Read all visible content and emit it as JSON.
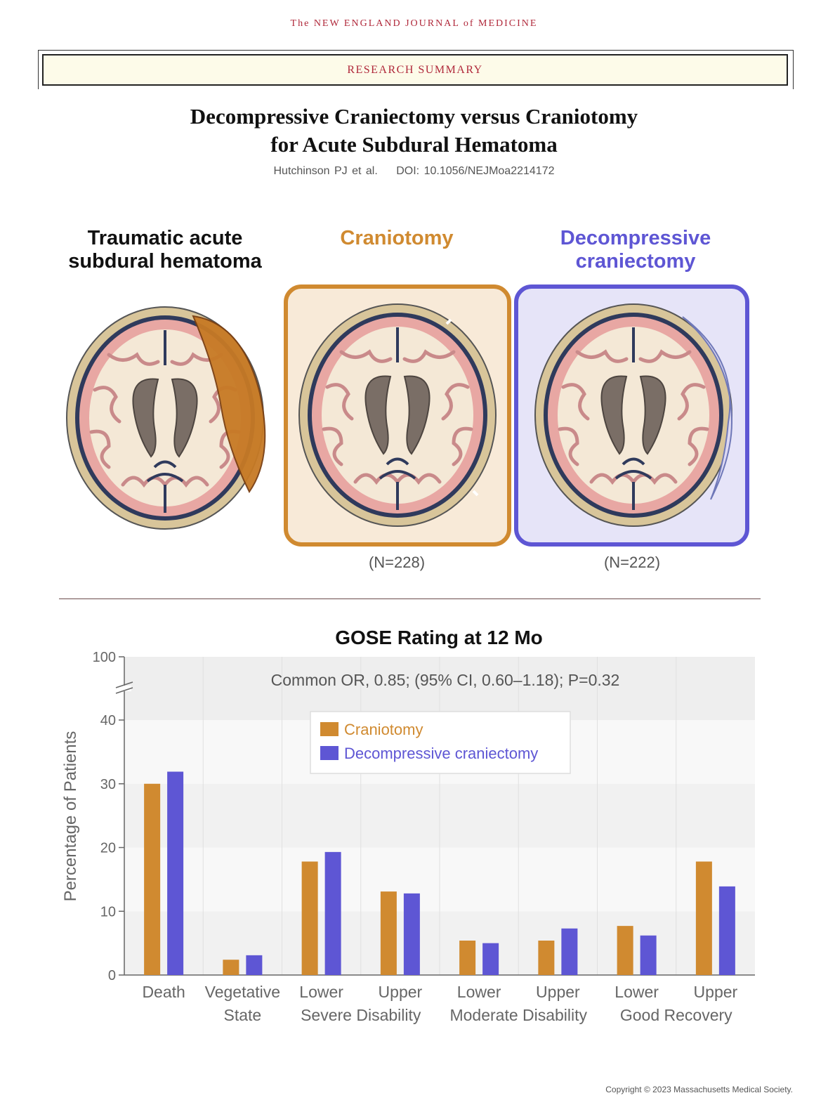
{
  "header": {
    "journal_name": "The NEW ENGLAND JOURNAL of MEDICINE",
    "banner": "RESEARCH SUMMARY",
    "title_line1": "Decompressive Craniectomy versus Craniotomy",
    "title_line2": "for Acute Subdural Hematoma",
    "authors": "Hutchinson PJ et al.",
    "doi": "DOI: 10.1056/NEJMoa2214172"
  },
  "panels": {
    "condition": {
      "line1": "Traumatic acute",
      "line2": "subdural hematoma"
    },
    "craniotomy": {
      "line1": "Craniotomy",
      "n": "(N=228)"
    },
    "craniectomy": {
      "line1": "Decompressive",
      "line2": "craniectomy",
      "n": "(N=222)"
    }
  },
  "colors": {
    "craniotomy": "#d08a30",
    "craniectomy": "#5e56d4",
    "journal_red": "#b0283a"
  },
  "chart_data": {
    "type": "bar",
    "title": "GOSE Rating at 12 Mo",
    "ylabel": "Percentage of Patients",
    "xlabel": "",
    "ylim": [
      0,
      100
    ],
    "y_axis_break": [
      40,
      100
    ],
    "yticks": [
      "0",
      "10",
      "20",
      "30",
      "40",
      "100"
    ],
    "annotation": "Common OR, 0.85; (95% CI, 0.60–1.18); P=0.32",
    "legend_position": "top-center",
    "grid": "alternating horizontal bands",
    "categories": [
      "Death",
      "Vegetative State",
      "Lower Severe Disability",
      "Upper Severe Disability",
      "Lower Moderate Disability",
      "Upper Moderate Disability",
      "Lower Good Recovery",
      "Upper Good Recovery"
    ],
    "tick_labels": {
      "death": "Death",
      "vegetative_1": "Vegetative",
      "vegetative_2": "State",
      "lower": "Lower",
      "upper": "Upper",
      "severe": "Severe Disability",
      "moderate": "Moderate Disability",
      "good": "Good Recovery"
    },
    "series": [
      {
        "name": "Craniotomy",
        "values": [
          30.0,
          2.4,
          17.8,
          13.1,
          5.4,
          5.4,
          7.7,
          17.8
        ]
      },
      {
        "name": "Decompressive craniectomy",
        "values": [
          31.9,
          3.1,
          19.3,
          12.8,
          5.0,
          7.3,
          6.2,
          13.9
        ]
      }
    ]
  },
  "footer": {
    "copyright": "Copyright © 2023  Massachusetts Medical Society."
  }
}
